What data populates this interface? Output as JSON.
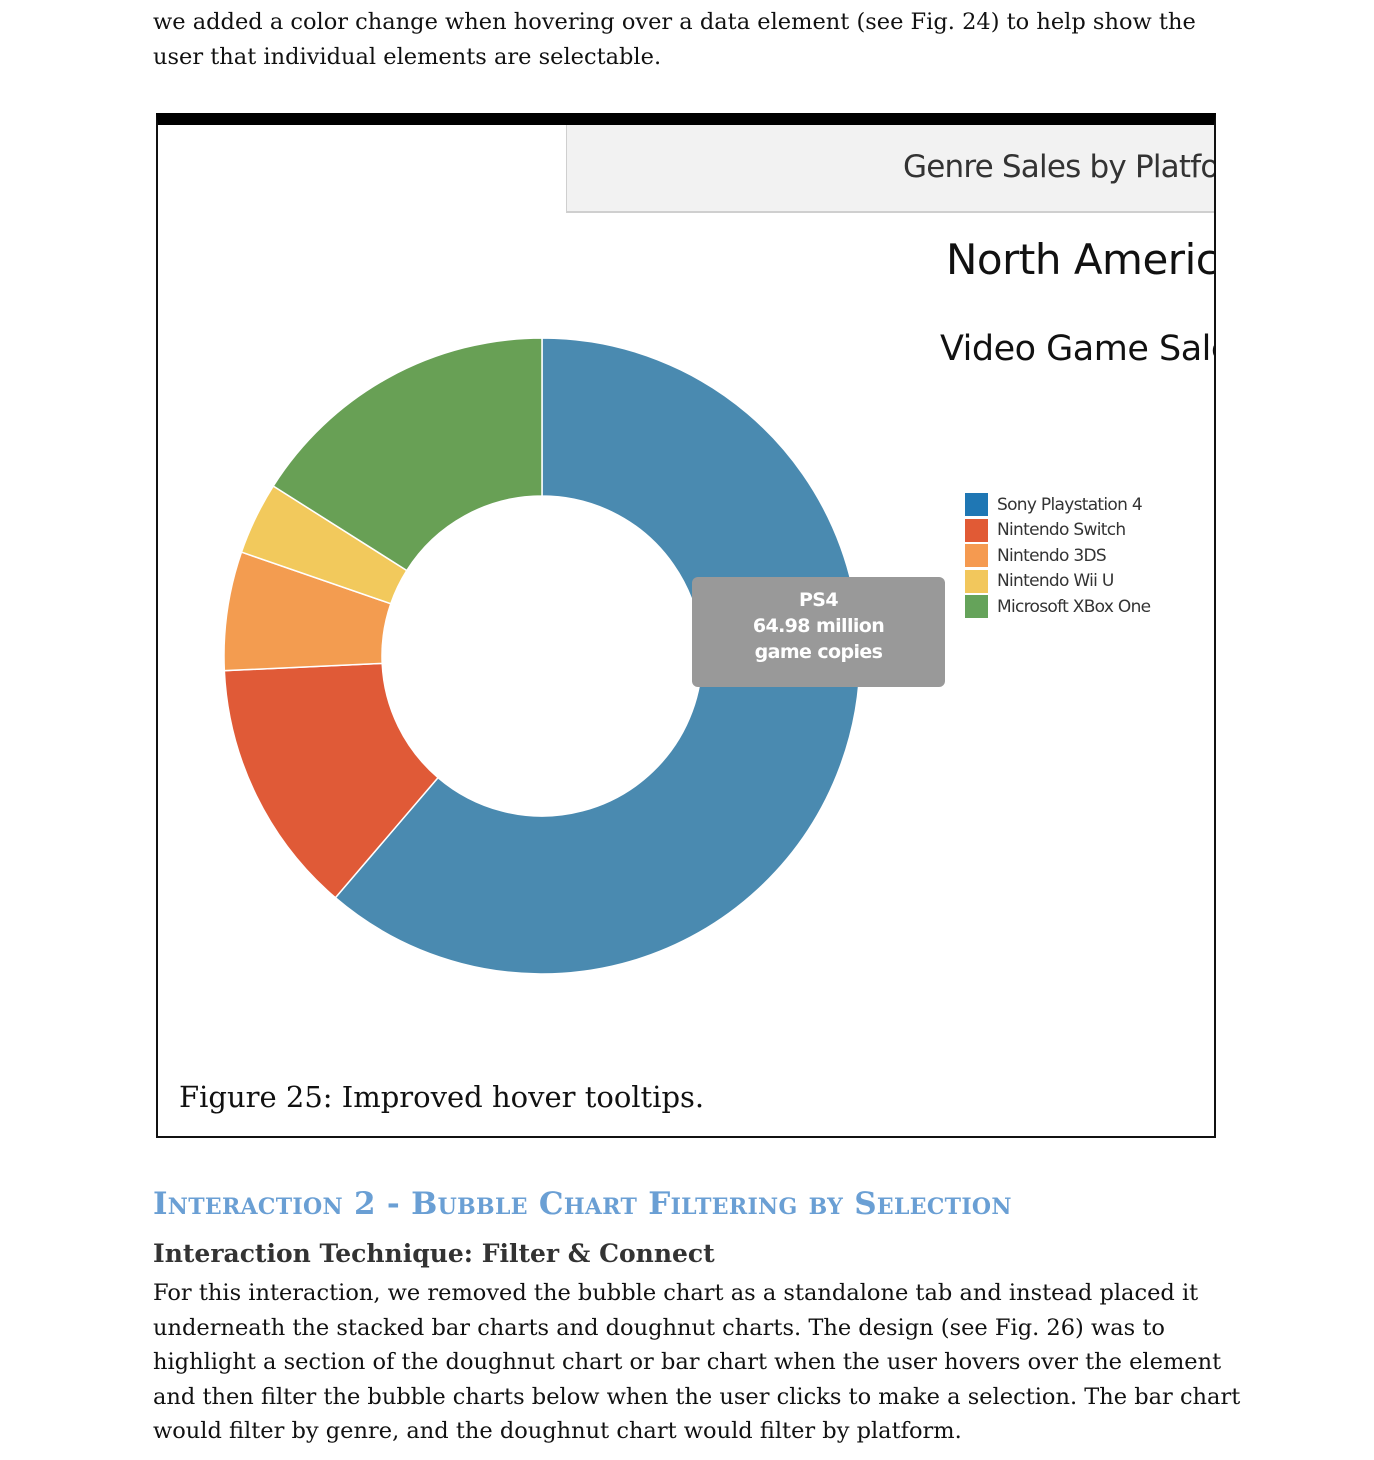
{
  "intro_text": "we added a color change when hovering over a data element (see Fig. 24) to help show the user that individual elements are selectable.",
  "figure": {
    "header": "Genre Sales by Platform",
    "title": "North America",
    "subtitle": "Video Game Sales",
    "tooltip": {
      "label": "PS4",
      "value_text": "64.98 million game copies"
    },
    "caption": "Figure 25: Improved hover tooltips."
  },
  "chart_data": {
    "type": "pie",
    "variant": "doughnut",
    "legend_position": "right",
    "series": [
      {
        "name": "Sony Playstation 4",
        "value": 64.98,
        "color": "#1f77b4",
        "slice_color": "#4a8ab0"
      },
      {
        "name": "Nintendo Switch",
        "value": 13.8,
        "color": "#e15a35",
        "slice_color": "#e05a37"
      },
      {
        "name": "Nintendo 3DS",
        "value": 6.4,
        "color": "#f59a50",
        "slice_color": "#f39c50"
      },
      {
        "name": "Nintendo Wii U",
        "value": 3.9,
        "color": "#f2c75c",
        "slice_color": "#f2c95c"
      },
      {
        "name": "Microsoft XBox One",
        "value": 17.0,
        "color": "#65a35a",
        "slice_color": "#68a055"
      }
    ]
  },
  "section": {
    "heading": "Interaction 2 - Bubble Chart Filtering by Selection",
    "subheading": "Interaction Technique: Filter & Connect",
    "body": "For this interaction, we removed the bubble chart as a standalone tab and instead placed it underneath the stacked bar charts and doughnut charts. The design (see Fig. 26) was to highlight a section of the doughnut chart or bar chart when the user hovers over the element and then filter the bubble charts below when the user clicks to make a selection. The bar chart would filter by genre, and the doughnut chart would filter by platform."
  }
}
